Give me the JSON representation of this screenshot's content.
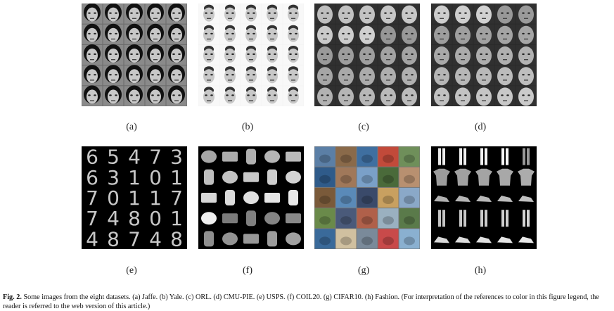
{
  "panels": [
    {
      "id": "a",
      "label": "(a)",
      "dataset": "Jaffe",
      "style": "faces-gray"
    },
    {
      "id": "b",
      "label": "(b)",
      "dataset": "Yale",
      "style": "faces-white"
    },
    {
      "id": "c",
      "label": "(c)",
      "dataset": "ORL",
      "style": "faces-dark"
    },
    {
      "id": "d",
      "label": "(d)",
      "dataset": "CMU-PIE",
      "style": "faces-dark"
    },
    {
      "id": "e",
      "label": "(e)",
      "dataset": "USPS",
      "style": "digits",
      "digits": [
        "6",
        "5",
        "4",
        "7",
        "3",
        "6",
        "3",
        "1",
        "0",
        "1",
        "7",
        "0",
        "1",
        "1",
        "7",
        "7",
        "4",
        "8",
        "0",
        "1",
        "4",
        "8",
        "7",
        "4",
        "8"
      ]
    },
    {
      "id": "f",
      "label": "(f)",
      "dataset": "COIL20",
      "style": "objects"
    },
    {
      "id": "g",
      "label": "(g)",
      "dataset": "CIFAR10",
      "style": "color-tiles"
    },
    {
      "id": "h",
      "label": "(h)",
      "dataset": "Fashion",
      "style": "fashion"
    }
  ],
  "caption": {
    "prefix": "Fig. 2.",
    "text": "Some images from the eight datasets. (a) Jaffe. (b) Yale. (c) ORL. (d) CMU-PIE. (e) USPS. (f) COIL20. (g) CIFAR10. (h) Fashion.  (For interpretation of the references to color in this figure legend, the reader is referred to the web version of this article.)"
  },
  "colors": {
    "cifar_tiles": [
      "#5b7fa6",
      "#8a6a4a",
      "#3f6fa0",
      "#c24a3a",
      "#6f8f5a",
      "#2f5b8a",
      "#a0785a",
      "#7aa0c8",
      "#4a6a3a",
      "#b89070",
      "#7a5a3a",
      "#5a8ab8",
      "#3a4a6a",
      "#c8a060",
      "#8aa8c8",
      "#6a8a4a",
      "#4a5a7a",
      "#b0604a",
      "#9ab0c0",
      "#5a7a4a",
      "#3a6a9a",
      "#d0c0a0",
      "#7a8a9a",
      "#c84a4a",
      "#8ab0d0"
    ]
  }
}
